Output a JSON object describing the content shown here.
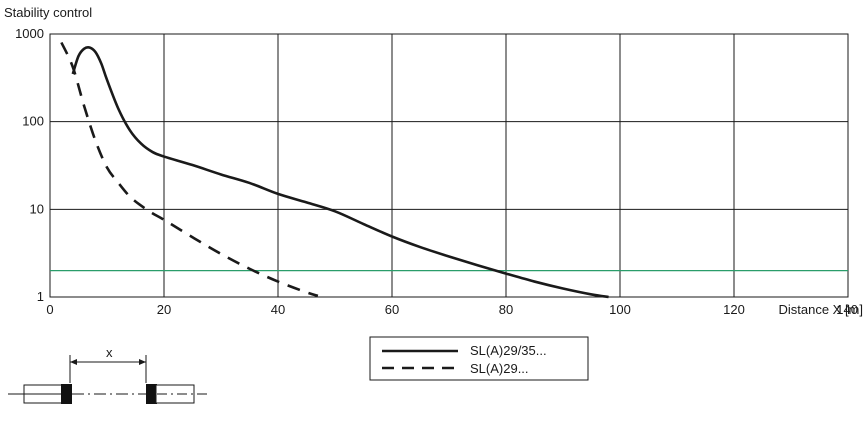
{
  "chart_data": {
    "type": "line",
    "title": "",
    "ylabel": "Stability control",
    "xlabel": "Distance X [m]",
    "y_scale": "log",
    "xlim": [
      0,
      140
    ],
    "ylim": [
      1,
      1000
    ],
    "x_ticks": [
      "0",
      "20",
      "40",
      "60",
      "80",
      "100",
      "120",
      "140"
    ],
    "y_ticks": [
      "1",
      "10",
      "100",
      "1000"
    ],
    "grid": true,
    "legend_position": "bottom-center",
    "series": [
      {
        "name": "SL(A)29/35...",
        "style": "solid",
        "color": "#1a1a1a",
        "x": [
          4,
          5,
          6,
          7,
          8,
          9,
          10,
          12,
          14,
          16,
          18,
          20,
          25,
          30,
          35,
          40,
          45,
          50,
          55,
          60,
          65,
          70,
          75,
          80,
          85,
          90,
          95,
          98
        ],
        "y": [
          350,
          560,
          680,
          700,
          620,
          460,
          300,
          140,
          80,
          56,
          45,
          40,
          32,
          25,
          20,
          15,
          12,
          9.5,
          6.8,
          4.9,
          3.7,
          2.9,
          2.3,
          1.85,
          1.5,
          1.25,
          1.07,
          1.0
        ]
      },
      {
        "name": "SL(A)29...",
        "style": "dashed",
        "color": "#1a1a1a",
        "x": [
          2,
          4,
          6,
          8,
          10,
          12,
          14,
          16,
          18,
          20,
          25,
          30,
          35,
          40,
          45,
          47
        ],
        "y": [
          800,
          420,
          150,
          60,
          30,
          20,
          14,
          11,
          9,
          7.6,
          4.8,
          3.1,
          2.1,
          1.5,
          1.13,
          1.03
        ]
      }
    ],
    "reference_line": {
      "y": 2,
      "color": "#2a9d6a"
    },
    "legend": [
      "SL(A)29/35...",
      "SL(A)29..."
    ]
  },
  "diagram": {
    "distance_label": "x"
  }
}
